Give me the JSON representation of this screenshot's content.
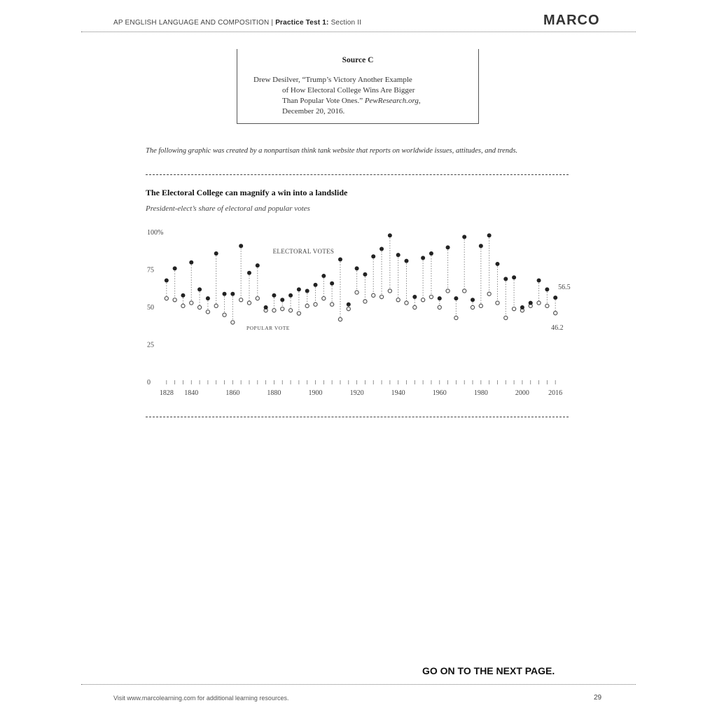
{
  "header": {
    "course": "AP ENGLISH LANGUAGE AND COMPOSITION",
    "test": "Practice Test 1:",
    "section": "Section II",
    "brand": "MARCO"
  },
  "source": {
    "title": "Source C",
    "citation_line_1": "Drew Desilver, “Trump’s Victory Another Example",
    "citation_line_2": "of How Electoral College Wins Are Bigger",
    "citation_line_3_a": "Than Popular Vote Ones.”",
    "citation_line_3_b": "PewResearch.org,",
    "citation_line_4": "December 20, 2016."
  },
  "intro": "The following graphic was created by a nonpartisan think tank website that reports on worldwide issues, attitudes, and trends.",
  "chart_data": {
    "type": "scatter",
    "title": "The Electoral College can magnify a win into a landslide",
    "subtitle": "President-elect’s share of electoral and popular votes",
    "ylim": [
      0,
      100
    ],
    "yticks": [
      "0",
      "25",
      "50",
      "75",
      "100%"
    ],
    "xticks": [
      "1828",
      "1840",
      "1860",
      "1880",
      "1900",
      "1920",
      "1940",
      "1960",
      "1980",
      "2000",
      "2016"
    ],
    "xlim": [
      1824,
      2020
    ],
    "series": [
      {
        "name": "ELECTORAL VOTES",
        "x": [
          1828,
          1832,
          1836,
          1840,
          1844,
          1848,
          1852,
          1856,
          1860,
          1864,
          1868,
          1872,
          1876,
          1880,
          1884,
          1888,
          1892,
          1896,
          1900,
          1904,
          1908,
          1912,
          1916,
          1920,
          1924,
          1928,
          1932,
          1936,
          1940,
          1944,
          1948,
          1952,
          1956,
          1960,
          1964,
          1968,
          1972,
          1976,
          1980,
          1984,
          1988,
          1992,
          1996,
          2000,
          2004,
          2008,
          2012,
          2016
        ],
        "values": [
          68,
          76,
          58,
          80,
          62,
          56,
          86,
          59,
          59,
          91,
          73,
          78,
          50,
          58,
          55,
          58,
          62,
          61,
          65,
          71,
          66,
          82,
          52,
          76,
          72,
          84,
          89,
          98,
          85,
          81,
          57,
          83,
          86,
          56,
          90,
          56,
          97,
          55,
          91,
          98,
          79,
          69,
          70,
          50,
          53,
          68,
          62,
          56.5
        ]
      },
      {
        "name": "POPULAR VOTE",
        "x": [
          1828,
          1832,
          1836,
          1840,
          1844,
          1848,
          1852,
          1856,
          1860,
          1864,
          1868,
          1872,
          1876,
          1880,
          1884,
          1888,
          1892,
          1896,
          1900,
          1904,
          1908,
          1912,
          1916,
          1920,
          1924,
          1928,
          1932,
          1936,
          1940,
          1944,
          1948,
          1952,
          1956,
          1960,
          1964,
          1968,
          1972,
          1976,
          1980,
          1984,
          1988,
          1992,
          1996,
          2000,
          2004,
          2008,
          2012,
          2016
        ],
        "values": [
          56,
          55,
          51,
          53,
          50,
          47,
          51,
          45,
          40,
          55,
          53,
          56,
          48,
          48,
          49,
          48,
          46,
          51,
          52,
          56,
          52,
          42,
          49,
          60,
          54,
          58,
          57,
          61,
          55,
          53,
          50,
          55,
          57,
          50,
          61,
          43,
          61,
          50,
          51,
          59,
          53,
          43,
          49,
          48,
          51,
          53,
          51,
          46.2
        ]
      }
    ],
    "annotations": {
      "electoral_label": "ELECTORAL VOTES",
      "popular_label": "POPULAR VOTE",
      "end_electoral": "56.5",
      "end_popular": "46.2"
    }
  },
  "footer": {
    "next_page": "GO ON TO THE NEXT PAGE.",
    "resources": "Visit www.marcolearning.com for additional learning resources.",
    "page_number": "29"
  }
}
